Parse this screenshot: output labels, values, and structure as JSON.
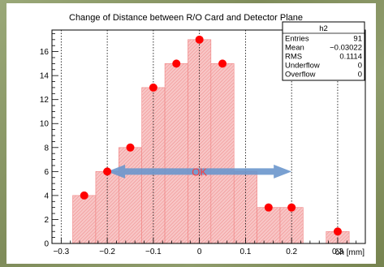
{
  "colors": {
    "hist_fill": "#f6b3b3",
    "hist_hatch": "#f08080",
    "marker": "#ff0000",
    "arrow": "#6a96cc",
    "arrow_label": "#ff3b3b"
  },
  "chart_data": {
    "type": "bar",
    "title": "Change of Distance between R/O Card and Detector Plane",
    "xlabel": "δh [mm]",
    "ylabel": "",
    "xlim": [
      -0.32,
      0.36
    ],
    "ylim": [
      0,
      17.8
    ],
    "grid": {
      "x": true,
      "y": false
    },
    "x_ticks": [
      -0.3,
      -0.2,
      -0.1,
      0,
      0.1,
      0.2,
      0.3
    ],
    "x_tick_labels": [
      "−0.3",
      "−0.2",
      "−0.1",
      "0",
      "0.1",
      "0.2",
      "0.3"
    ],
    "y_ticks": [
      0,
      2,
      4,
      6,
      8,
      10,
      12,
      14,
      16
    ],
    "y_tick_labels": [
      "0",
      "2",
      "4",
      "6",
      "8",
      "10",
      "12",
      "14",
      "16"
    ],
    "bins": [
      {
        "x0": -0.275,
        "x1": -0.225,
        "value": 4
      },
      {
        "x0": -0.225,
        "x1": -0.175,
        "value": 6
      },
      {
        "x0": -0.175,
        "x1": -0.125,
        "value": 8
      },
      {
        "x0": -0.125,
        "x1": -0.075,
        "value": 13
      },
      {
        "x0": -0.075,
        "x1": -0.025,
        "value": 15
      },
      {
        "x0": -0.025,
        "x1": 0.025,
        "value": 17
      },
      {
        "x0": 0.025,
        "x1": 0.075,
        "value": 15
      },
      {
        "x0": 0.075,
        "x1": 0.125,
        "value": 6
      },
      {
        "x0": 0.125,
        "x1": 0.175,
        "value": 3
      },
      {
        "x0": 0.175,
        "x1": 0.225,
        "value": 3
      },
      {
        "x0": 0.225,
        "x1": 0.275,
        "value": 0
      },
      {
        "x0": 0.275,
        "x1": 0.325,
        "value": 1
      }
    ],
    "markers": [
      {
        "x": -0.25,
        "y": 4
      },
      {
        "x": -0.2,
        "y": 6
      },
      {
        "x": -0.15,
        "y": 8
      },
      {
        "x": -0.1,
        "y": 13
      },
      {
        "x": -0.05,
        "y": 15
      },
      {
        "x": 0.0,
        "y": 17
      },
      {
        "x": 0.05,
        "y": 15
      },
      {
        "x": 0.15,
        "y": 3
      },
      {
        "x": 0.2,
        "y": 3
      },
      {
        "x": 0.3,
        "y": 1
      }
    ],
    "annotation": {
      "text": "OK",
      "x_from": -0.2,
      "x_to": 0.2,
      "y": 6
    },
    "stats_box": {
      "name": "h2",
      "rows": [
        {
          "label": "Entries",
          "value": "91"
        },
        {
          "label": "Mean",
          "value": "−0.03022"
        },
        {
          "label": "RMS",
          "value": "0.1114"
        },
        {
          "label": "Underflow",
          "value": "0"
        },
        {
          "label": "Overflow",
          "value": "0"
        }
      ]
    }
  }
}
